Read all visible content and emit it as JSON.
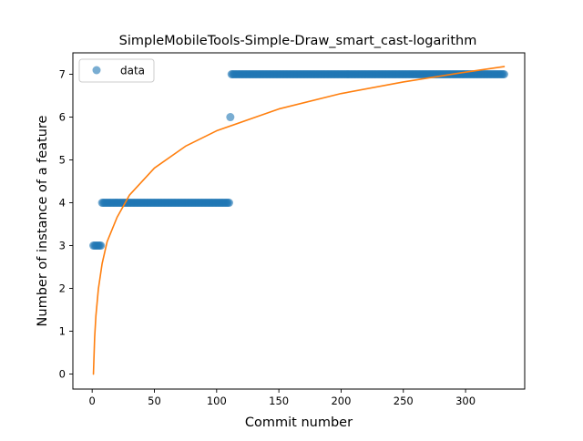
{
  "chart_data": {
    "type": "scatter",
    "title": "SimpleMobileTools-Simple-Draw_smart_cast-logarithm",
    "xlabel": "Commit number",
    "ylabel": "Number of instance of a feature",
    "xlim": [
      -15.5,
      347.5
    ],
    "ylim": [
      -0.35,
      7.5
    ],
    "xticks": [
      0,
      50,
      100,
      150,
      200,
      250,
      300
    ],
    "yticks": [
      0,
      1,
      2,
      3,
      4,
      5,
      6,
      7
    ],
    "grid": false,
    "legend": {
      "placement": "top-left",
      "entries": [
        "data"
      ]
    },
    "colors": {
      "data": "#1f77b4",
      "fit": "#ff7f0e"
    },
    "series": [
      {
        "name": "data",
        "kind": "points",
        "segments": [
          {
            "x_start": 1,
            "x_end": 7,
            "y": 3
          },
          {
            "x_start": 8,
            "x_end": 110,
            "y": 4
          },
          {
            "x_start": 111,
            "x_end": 111,
            "y": 6
          },
          {
            "x_start": 112,
            "x_end": 331,
            "y": 7
          }
        ]
      },
      {
        "kind": "line",
        "x": [
          1,
          2,
          3,
          5,
          8,
          12,
          20,
          30,
          50,
          75,
          100,
          150,
          200,
          250,
          300,
          331
        ],
        "y": [
          0,
          0.86,
          1.36,
          1.99,
          2.58,
          3.09,
          3.66,
          4.18,
          4.81,
          5.32,
          5.68,
          6.19,
          6.55,
          6.82,
          7.05,
          7.18
        ]
      }
    ]
  }
}
